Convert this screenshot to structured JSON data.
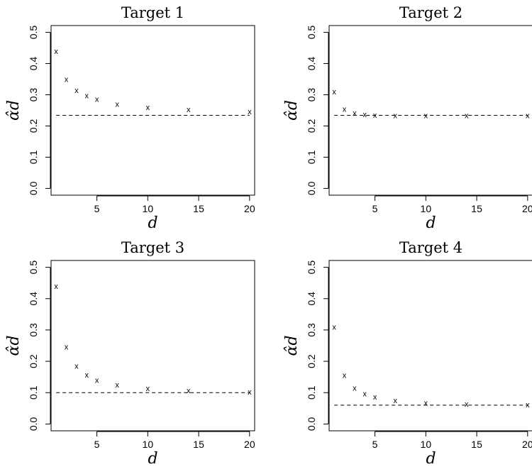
{
  "chart_data": [
    {
      "type": "scatter",
      "title": "Target 1",
      "xlabel": "d",
      "ylabel": "α̂d",
      "xlim": [
        0.5,
        20.5
      ],
      "ylim": [
        0,
        0.5
      ],
      "x_ticks": [
        5,
        10,
        15,
        20
      ],
      "y_ticks": [
        0.0,
        0.1,
        0.2,
        0.3,
        0.4,
        0.5
      ],
      "x": [
        1,
        2,
        3,
        4,
        5,
        7,
        10,
        14,
        20
      ],
      "y": [
        0.44,
        0.35,
        0.315,
        0.298,
        0.286,
        0.27,
        0.26,
        0.253,
        0.247
      ],
      "reference_line": 0.234,
      "marker": "x"
    },
    {
      "type": "scatter",
      "title": "Target 2",
      "xlabel": "d",
      "ylabel": "α̂d",
      "xlim": [
        0.5,
        20.5
      ],
      "ylim": [
        0,
        0.5
      ],
      "x_ticks": [
        5,
        10,
        15,
        20
      ],
      "y_ticks": [
        0.0,
        0.1,
        0.2,
        0.3,
        0.4,
        0.5
      ],
      "x": [
        1,
        2,
        3,
        4,
        5,
        7,
        10,
        14,
        20
      ],
      "y": [
        0.31,
        0.255,
        0.242,
        0.237,
        0.235,
        0.234,
        0.234,
        0.234,
        0.234
      ],
      "reference_line": 0.234,
      "marker": "x"
    },
    {
      "type": "scatter",
      "title": "Target 3",
      "xlabel": "d",
      "ylabel": "α̂d",
      "xlim": [
        0.5,
        20.5
      ],
      "ylim": [
        0,
        0.5
      ],
      "x_ticks": [
        5,
        10,
        15,
        20
      ],
      "y_ticks": [
        0.0,
        0.1,
        0.2,
        0.3,
        0.4,
        0.5
      ],
      "x": [
        1,
        2,
        3,
        4,
        5,
        7,
        10,
        14,
        20
      ],
      "y": [
        0.44,
        0.247,
        0.185,
        0.157,
        0.14,
        0.125,
        0.114,
        0.107,
        0.103
      ],
      "reference_line": 0.1,
      "marker": "x"
    },
    {
      "type": "scatter",
      "title": "Target 4",
      "xlabel": "d",
      "ylabel": "α̂d",
      "xlim": [
        0.5,
        20.5
      ],
      "ylim": [
        0,
        0.5
      ],
      "x_ticks": [
        5,
        10,
        15,
        20
      ],
      "y_ticks": [
        0.0,
        0.1,
        0.2,
        0.3,
        0.4,
        0.5
      ],
      "x": [
        1,
        2,
        3,
        4,
        5,
        7,
        10,
        14,
        20
      ],
      "y": [
        0.31,
        0.156,
        0.115,
        0.097,
        0.087,
        0.076,
        0.068,
        0.064,
        0.062
      ],
      "reference_line": 0.06,
      "marker": "x"
    }
  ]
}
